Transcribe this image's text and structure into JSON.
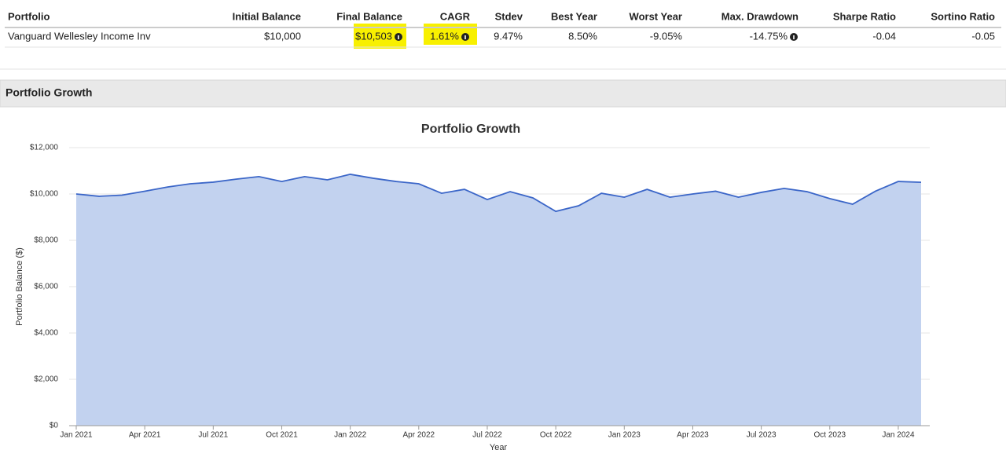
{
  "table": {
    "headers": [
      "Portfolio",
      "Initial Balance",
      "Final Balance",
      "CAGR",
      "Stdev",
      "Best Year",
      "Worst Year",
      "Max. Drawdown",
      "Sharpe Ratio",
      "Sortino Ratio"
    ],
    "rows": [
      [
        "Vanguard Wellesley Income Inv",
        "$10,000",
        "$10,503",
        "1.61%",
        "9.47%",
        "8.50%",
        "-9.05%",
        "-14.75%",
        "-0.04",
        "-0.05"
      ]
    ]
  },
  "section": {
    "title": "Portfolio Growth"
  },
  "chart_data": {
    "type": "area",
    "title": "Portfolio Growth",
    "x_label": "Year",
    "y_label": "Portfolio Balance ($)",
    "categories": [
      "Jan 2021",
      null,
      null,
      "Apr 2021",
      null,
      null,
      "Jul 2021",
      null,
      null,
      "Oct 2021",
      null,
      null,
      "Jan 2022",
      null,
      null,
      "Apr 2022",
      null,
      null,
      "Jul 2022",
      null,
      null,
      "Oct 2022",
      null,
      null,
      "Jan 2023",
      null,
      null,
      "Apr 2023",
      null,
      null,
      "Jul 2023",
      null,
      null,
      "Oct 2023",
      null,
      null,
      "Jan 2024",
      null
    ],
    "values": [
      10000,
      9900,
      9950,
      10120,
      10300,
      10440,
      10510,
      10640,
      10750,
      10540,
      10750,
      10610,
      10850,
      10680,
      10540,
      10440,
      10030,
      10200,
      9760,
      10100,
      9830,
      9250,
      9490,
      10030,
      9860,
      10200,
      9860,
      10000,
      10120,
      9860,
      10070,
      10240,
      10100,
      9800,
      9560,
      10120,
      10540,
      10503
    ],
    "color": "#3b66c8",
    "fill": "#c2d2ef",
    "ylim": [
      0,
      12000
    ],
    "yticks": [
      {
        "value": 0,
        "label": "$0"
      },
      {
        "value": 2000,
        "label": "$2,000"
      },
      {
        "value": 4000,
        "label": "$4,000"
      },
      {
        "value": 6000,
        "label": "$6,000"
      },
      {
        "value": 8000,
        "label": "$8,000"
      },
      {
        "value": 10000,
        "label": "$10,000"
      },
      {
        "value": 12000,
        "label": "$12,000"
      }
    ],
    "grid": true
  }
}
